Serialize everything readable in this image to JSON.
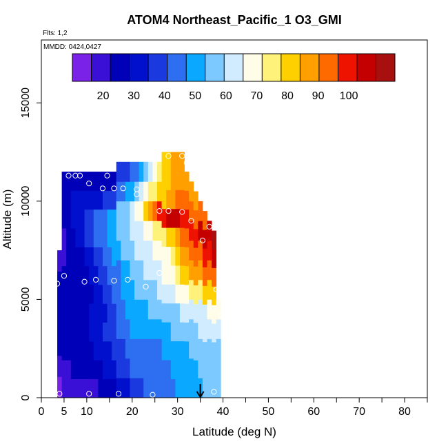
{
  "chart_data": {
    "type": "heatmap",
    "title": "ATOM4 Northeast_Pacific_1 O3_GMI",
    "flights_label": "Flts: 1,2",
    "mmdd_label": "MMDD: 0424,0427",
    "xlabel": "Latitude (deg N)",
    "ylabel": "Altitude (m)",
    "xlim": [
      0,
      85
    ],
    "ylim": [
      0,
      18200
    ],
    "x_ticks": [
      0,
      5,
      10,
      20,
      30,
      40,
      50,
      60,
      70,
      80
    ],
    "x_tick_labels": [
      "0",
      "5",
      "10",
      "20",
      "30",
      "40",
      "50",
      "60",
      "70",
      "80"
    ],
    "x_minor_ticks": [
      15,
      25,
      35,
      45,
      55,
      65,
      75,
      85
    ],
    "y_ticks": [
      0,
      5000,
      10000,
      15000
    ],
    "y_tick_labels": [
      "0",
      "5000",
      "10000",
      "15000"
    ],
    "colorbar": {
      "range": [
        10,
        115
      ],
      "colors": [
        "#7b22e8",
        "#3a10d6",
        "#0000b8",
        "#0010cc",
        "#1a3ae0",
        "#2d6ff0",
        "#0aa8ff",
        "#7cc9ff",
        "#d2ecff",
        "#fffce8",
        "#fff27a",
        "#ffd000",
        "#ffa000",
        "#ff6a00",
        "#ee1200",
        "#c40000",
        "#a81010"
      ],
      "tick_values": [
        20,
        30,
        40,
        50,
        60,
        70,
        80,
        90,
        100
      ],
      "tick_labels": [
        "20",
        "30",
        "40",
        "50",
        "60",
        "70",
        "80",
        "90",
        "100"
      ]
    },
    "profile_columns": [
      {
        "lat": 4,
        "alt_bottom": 0,
        "alt_top": 7500,
        "values": [
          16,
          20,
          24,
          27,
          26,
          25,
          22
        ]
      },
      {
        "lat": 5,
        "alt_bottom": 0,
        "alt_top": 11500,
        "values": [
          18,
          22,
          25,
          27,
          26,
          25,
          23,
          22,
          22,
          23,
          24,
          25
        ]
      },
      {
        "lat": 6,
        "alt_bottom": 0,
        "alt_top": 11500,
        "values": [
          18,
          22,
          25,
          27,
          26,
          24,
          23,
          23,
          23,
          25,
          26,
          27
        ]
      },
      {
        "lat": 7,
        "alt_bottom": 0,
        "alt_top": 11500,
        "values": [
          19,
          23,
          25,
          27,
          26,
          25,
          24,
          25,
          26,
          30,
          30,
          28
        ]
      },
      {
        "lat": 8,
        "alt_bottom": 0,
        "alt_top": 11500,
        "values": [
          19,
          23,
          26,
          28,
          27,
          26,
          25,
          26,
          30,
          32,
          30,
          27
        ]
      },
      {
        "lat": 9,
        "alt_bottom": 0,
        "alt_top": 11500,
        "values": [
          19,
          24,
          26,
          28,
          28,
          26,
          26,
          28,
          32,
          34,
          30,
          26
        ]
      },
      {
        "lat": 10,
        "alt_bottom": 0,
        "alt_top": 11500,
        "values": [
          20,
          24,
          26,
          28,
          28,
          27,
          27,
          30,
          35,
          37,
          32,
          26
        ]
      },
      {
        "lat": 11,
        "alt_bottom": 0,
        "alt_top": 11500,
        "values": [
          21,
          25,
          28,
          30,
          29,
          28,
          29,
          33,
          38,
          40,
          32,
          25
        ]
      },
      {
        "lat": 12,
        "alt_bottom": 0,
        "alt_top": 11500,
        "values": [
          22,
          26,
          29,
          31,
          31,
          30,
          32,
          36,
          41,
          42,
          33,
          25
        ]
      },
      {
        "lat": 13,
        "alt_bottom": 0,
        "alt_top": 11500,
        "values": [
          23,
          27,
          30,
          33,
          32,
          32,
          35,
          39,
          44,
          44,
          34,
          24
        ]
      },
      {
        "lat": 14,
        "alt_bottom": 0,
        "alt_top": 11500,
        "values": [
          24,
          29,
          32,
          35,
          34,
          35,
          38,
          42,
          46,
          46,
          35,
          24
        ]
      },
      {
        "lat": 15,
        "alt_bottom": 0,
        "alt_top": 11500,
        "values": [
          26,
          31,
          34,
          37,
          37,
          38,
          41,
          45,
          49,
          48,
          36,
          24
        ]
      },
      {
        "lat": 16,
        "alt_bottom": 0,
        "alt_top": 11500,
        "values": [
          28,
          33,
          36,
          39,
          40,
          42,
          44,
          48,
          51,
          51,
          38,
          24
        ]
      },
      {
        "lat": 17,
        "alt_bottom": 0,
        "alt_top": 12000,
        "values": [
          30,
          35,
          38,
          42,
          43,
          45,
          47,
          51,
          54,
          55,
          42,
          35
        ]
      },
      {
        "lat": 18,
        "alt_bottom": 0,
        "alt_top": 12000,
        "values": [
          32,
          37,
          40,
          44,
          46,
          48,
          50,
          54,
          57,
          57,
          45,
          37
        ]
      },
      {
        "lat": 19,
        "alt_bottom": 0,
        "alt_top": 12000,
        "values": [
          34,
          39,
          42,
          46,
          48,
          51,
          53,
          56,
          58,
          59,
          48,
          39
        ]
      },
      {
        "lat": 20,
        "alt_bottom": 0,
        "alt_top": 12000,
        "values": [
          36,
          41,
          44,
          48,
          50,
          53,
          56,
          58,
          60,
          62,
          52,
          42
        ]
      },
      {
        "lat": 21,
        "alt_bottom": 0,
        "alt_top": 12000,
        "values": [
          38,
          42,
          45,
          49,
          51,
          55,
          58,
          60,
          62,
          66,
          56,
          45
        ]
      },
      {
        "lat": 22,
        "alt_bottom": 0,
        "alt_top": 12000,
        "values": [
          40,
          43,
          46,
          50,
          52,
          56,
          59,
          62,
          65,
          70,
          62,
          50
        ]
      },
      {
        "lat": 23,
        "alt_bottom": 0,
        "alt_top": 12000,
        "values": [
          41,
          44,
          47,
          50,
          53,
          57,
          60,
          64,
          68,
          78,
          68,
          56
        ]
      },
      {
        "lat": 24,
        "alt_bottom": 0,
        "alt_top": 12000,
        "values": [
          42,
          44,
          47,
          50,
          54,
          58,
          61,
          65,
          70,
          86,
          72,
          62
        ]
      },
      {
        "lat": 25,
        "alt_bottom": 0,
        "alt_top": 12000,
        "values": [
          43,
          45,
          47,
          50,
          55,
          59,
          62,
          66,
          72,
          92,
          76,
          68
        ]
      },
      {
        "lat": 26,
        "alt_bottom": 0,
        "alt_top": 12000,
        "values": [
          44,
          45,
          47,
          51,
          56,
          60,
          64,
          67,
          74,
          98,
          80,
          72
        ]
      },
      {
        "lat": 27,
        "alt_bottom": 0,
        "alt_top": 12500,
        "values": [
          45,
          46,
          48,
          52,
          57,
          62,
          66,
          68,
          76,
          102,
          84,
          78,
          80
        ]
      },
      {
        "lat": 28,
        "alt_bottom": 0,
        "alt_top": 12500,
        "values": [
          46,
          47,
          49,
          53,
          58,
          63,
          68,
          70,
          80,
          104,
          88,
          82,
          84
        ]
      },
      {
        "lat": 29,
        "alt_bottom": 0,
        "alt_top": 12500,
        "values": [
          47,
          48,
          50,
          54,
          58,
          64,
          70,
          72,
          84,
          106,
          90,
          85,
          86
        ]
      },
      {
        "lat": 30,
        "alt_bottom": 0,
        "alt_top": 12500,
        "values": [
          48,
          49,
          51,
          55,
          59,
          66,
          74,
          80,
          88,
          104,
          92,
          87,
          88
        ]
      },
      {
        "lat": 31,
        "alt_bottom": 0,
        "alt_top": 12500,
        "values": [
          49,
          50,
          52,
          56,
          60,
          68,
          78,
          86,
          92,
          100,
          93,
          88,
          90
        ]
      },
      {
        "lat": 32,
        "alt_bottom": 0,
        "alt_top": 11500,
        "values": [
          50,
          51,
          53,
          57,
          61,
          70,
          82,
          90,
          96,
          98,
          92,
          86
        ]
      },
      {
        "lat": 33,
        "alt_bottom": 0,
        "alt_top": 11000,
        "values": [
          51,
          52,
          54,
          58,
          62,
          72,
          86,
          92,
          100,
          96,
          90
        ]
      },
      {
        "lat": 34,
        "alt_bottom": 0,
        "alt_top": 10500,
        "values": [
          52,
          53,
          55,
          59,
          63,
          74,
          88,
          94,
          102,
          95,
          88
        ]
      },
      {
        "lat": 35,
        "alt_bottom": 0,
        "alt_top": 10000,
        "values": [
          53,
          54,
          56,
          60,
          64,
          76,
          90,
          96,
          104,
          94
        ]
      },
      {
        "lat": 36,
        "alt_bottom": 0,
        "alt_top": 9500,
        "values": [
          54,
          55,
          57,
          61,
          65,
          78,
          92,
          98,
          106,
          93
        ]
      },
      {
        "lat": 37,
        "alt_bottom": 0,
        "alt_top": 9000,
        "values": [
          55,
          56,
          58,
          62,
          66,
          80,
          94,
          100,
          108
        ]
      },
      {
        "lat": 38,
        "alt_bottom": 0,
        "alt_top": 8500,
        "values": [
          56,
          57,
          59,
          63,
          68,
          82,
          96,
          104,
          110
        ]
      },
      {
        "lat": 39,
        "alt_bottom": 0,
        "alt_top": 5000,
        "values": [
          56,
          57,
          59,
          62,
          66
        ]
      }
    ],
    "sample_points": [
      {
        "lat": 4,
        "alt": 200
      },
      {
        "lat": 10.5,
        "alt": 200
      },
      {
        "lat": 17,
        "alt": 200
      },
      {
        "lat": 24.5,
        "alt": 150
      },
      {
        "lat": 38,
        "alt": 300
      },
      {
        "lat": 3.5,
        "alt": 5800
      },
      {
        "lat": 5,
        "alt": 6200
      },
      {
        "lat": 9.5,
        "alt": 5900
      },
      {
        "lat": 12,
        "alt": 6000
      },
      {
        "lat": 16,
        "alt": 5950
      },
      {
        "lat": 19,
        "alt": 6000
      },
      {
        "lat": 23,
        "alt": 5650
      },
      {
        "lat": 26,
        "alt": 6350
      },
      {
        "lat": 38.5,
        "alt": 5500
      },
      {
        "lat": 38,
        "alt": 4500
      },
      {
        "lat": 39.5,
        "alt": 4200
      },
      {
        "lat": 6,
        "alt": 11300
      },
      {
        "lat": 7.5,
        "alt": 11300
      },
      {
        "lat": 8.5,
        "alt": 11300
      },
      {
        "lat": 14.5,
        "alt": 11300
      },
      {
        "lat": 10.5,
        "alt": 10900
      },
      {
        "lat": 13.5,
        "alt": 10650
      },
      {
        "lat": 16,
        "alt": 10650
      },
      {
        "lat": 18,
        "alt": 10650
      },
      {
        "lat": 21,
        "alt": 10600
      },
      {
        "lat": 21,
        "alt": 10350
      },
      {
        "lat": 26,
        "alt": 9500
      },
      {
        "lat": 28,
        "alt": 9500
      },
      {
        "lat": 31,
        "alt": 9450
      },
      {
        "lat": 33,
        "alt": 9000
      },
      {
        "lat": 37,
        "alt": 8700
      },
      {
        "lat": 35.5,
        "alt": 8000
      },
      {
        "lat": 28,
        "alt": 12300
      },
      {
        "lat": 31,
        "alt": 12300
      },
      {
        "lat": 32,
        "alt": 11950
      },
      {
        "lat": 25,
        "alt": 12300
      }
    ],
    "marker": {
      "type": "arrow-down",
      "lat": 35,
      "alt_top": 700,
      "alt_bottom": 0
    }
  }
}
